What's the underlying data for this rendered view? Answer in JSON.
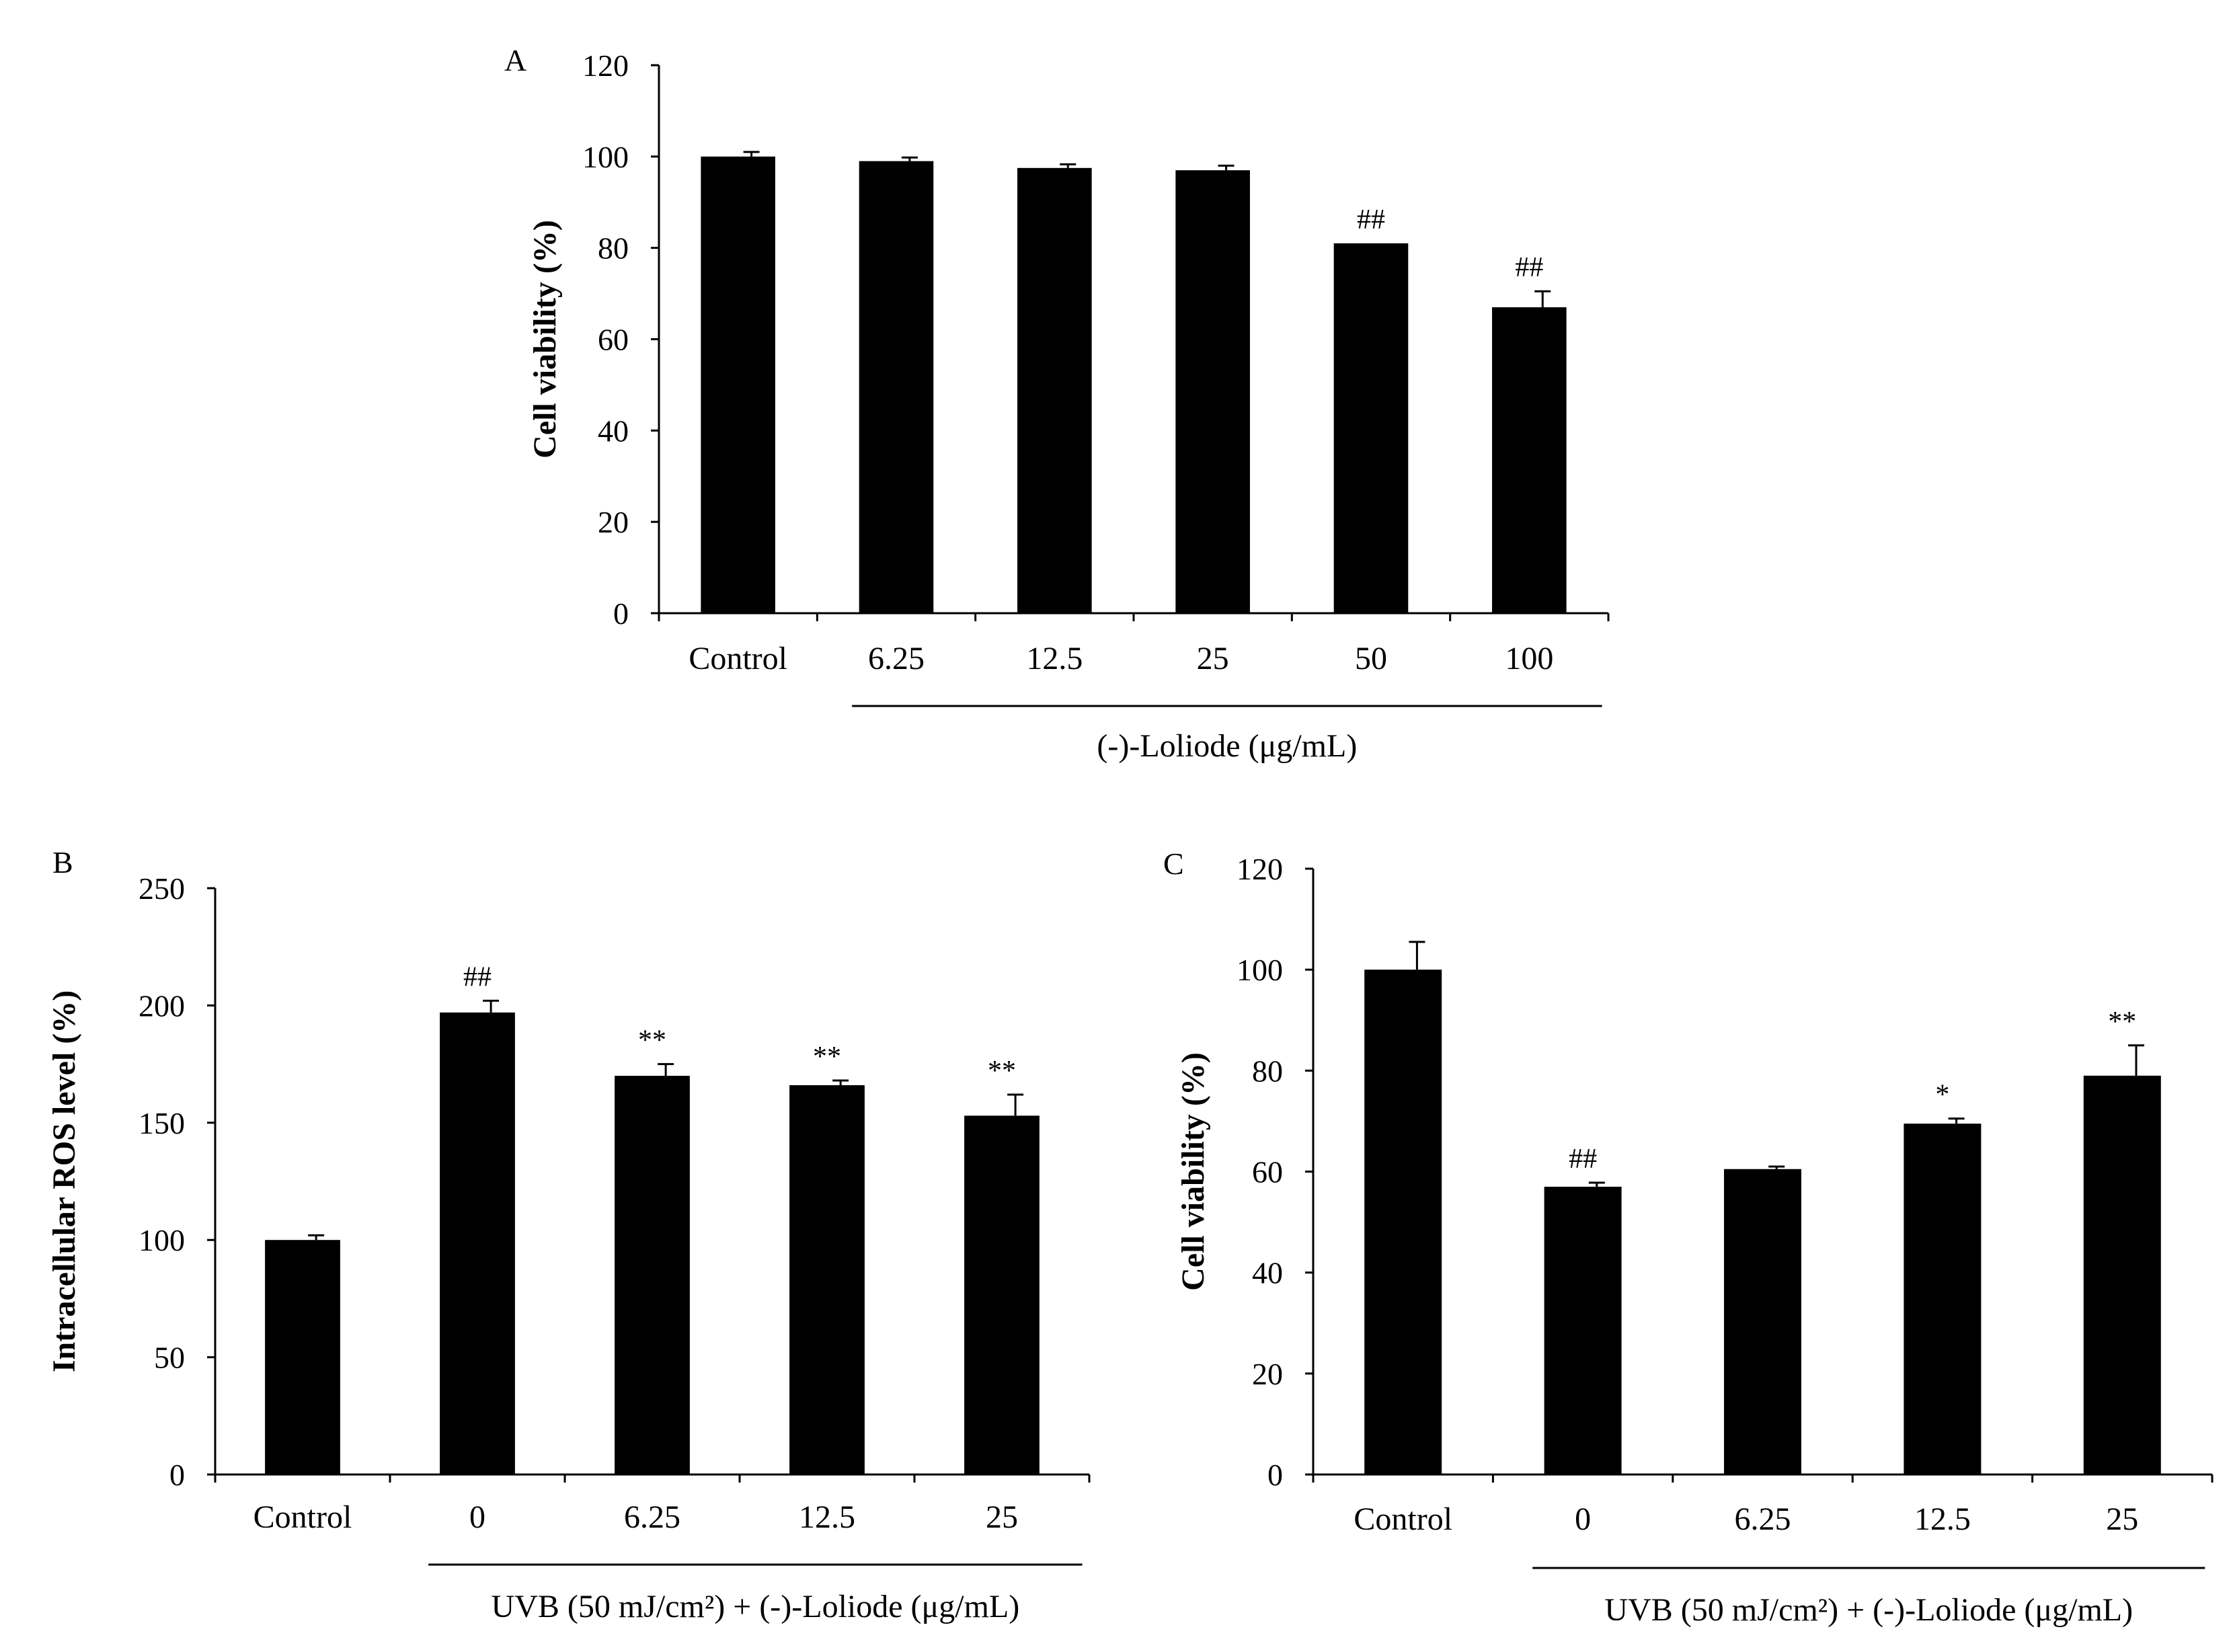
{
  "chart_data": [
    {
      "type": "bar",
      "panel_label": "A",
      "ylabel": "Cell viability (%)",
      "ylim": [
        0,
        120
      ],
      "yticks": [
        "0",
        "20",
        "40",
        "60",
        "80",
        "100",
        "120"
      ],
      "categories": [
        "Control",
        "6.25",
        "12.5",
        "25",
        "50",
        "100"
      ],
      "values": [
        100,
        99,
        97.5,
        97,
        81,
        67
      ],
      "errors": [
        1,
        0.8,
        0.8,
        1,
        0,
        3.5
      ],
      "annotations": [
        "",
        "",
        "",
        "",
        "##",
        "##"
      ],
      "group_label": "(-)-Loliode (μg/mL)",
      "group_from": 1
    },
    {
      "type": "bar",
      "panel_label": "B",
      "ylabel": "Intracellular ROS level (%)",
      "ylim": [
        0,
        250
      ],
      "yticks": [
        "0",
        "50",
        "100",
        "150",
        "200",
        "250"
      ],
      "categories": [
        "Control",
        "0",
        "6.25",
        "12.5",
        "25"
      ],
      "values": [
        100,
        197,
        170,
        166,
        153
      ],
      "errors": [
        2,
        5,
        5,
        2,
        9
      ],
      "annotations": [
        "",
        "##",
        "**",
        "**",
        "**"
      ],
      "group_label": "UVB (50 mJ/cm²) + (-)-Loliode (μg/mL)",
      "group_from": 1
    },
    {
      "type": "bar",
      "panel_label": "C",
      "ylabel": "Cell viability (%)",
      "ylim": [
        0,
        120
      ],
      "yticks": [
        "0",
        "20",
        "40",
        "60",
        "80",
        "100",
        "120"
      ],
      "categories": [
        "Control",
        "0",
        "6.25",
        "12.5",
        "25"
      ],
      "values": [
        100,
        57,
        60.5,
        69.5,
        79
      ],
      "errors": [
        5.5,
        0.8,
        0.5,
        1,
        6
      ],
      "annotations": [
        "",
        "##",
        "",
        "*",
        "**"
      ],
      "group_label": "UVB (50 mJ/cm²) + (-)-Loliode (μg/mL)",
      "group_from": 1
    }
  ]
}
